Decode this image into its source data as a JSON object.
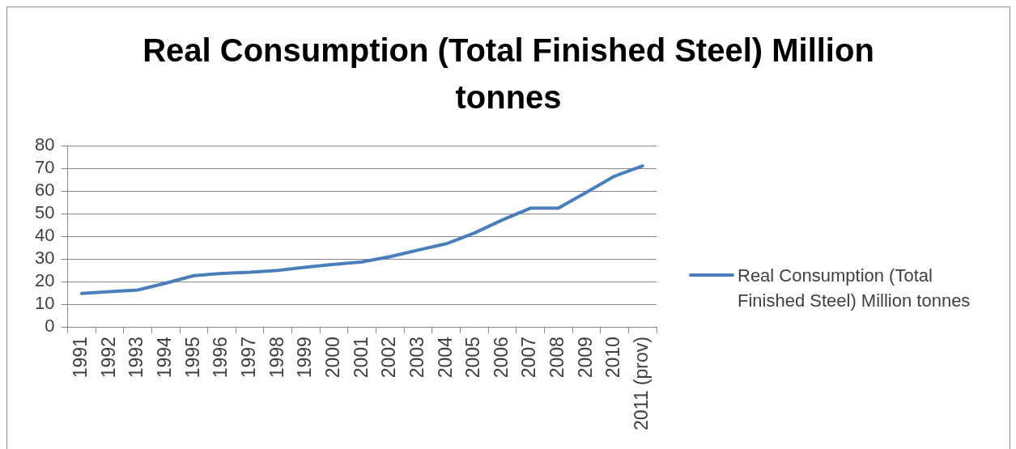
{
  "chart_data": {
    "type": "line",
    "title": "Real Consumption (Total Finished Steel) Million tonnes",
    "categories": [
      "1991",
      "1992",
      "1993",
      "1994",
      "1995",
      "1996",
      "1997",
      "1998",
      "1999",
      "2000",
      "2001",
      "2002",
      "2003",
      "2004",
      "2005",
      "2006",
      "2007",
      "2008",
      "2009",
      "2010",
      "2011 (prov)"
    ],
    "series": [
      {
        "name": "Real Consumption (Total Finished Steel) Million tonnes",
        "color": "#4a7ebb",
        "values": [
          14.8,
          15.6,
          16.3,
          19.3,
          22.6,
          23.6,
          24.1,
          24.9,
          26.4,
          27.6,
          28.7,
          31.0,
          33.9,
          36.7,
          41.4,
          47.2,
          52.4,
          52.4,
          59.4,
          66.5,
          71.0
        ]
      }
    ],
    "ylim": [
      0,
      80
    ],
    "yticks": [
      0,
      10,
      20,
      30,
      40,
      50,
      60,
      70,
      80
    ],
    "grid": "y",
    "legend": "right",
    "marker": "none",
    "line_style": "solid"
  }
}
